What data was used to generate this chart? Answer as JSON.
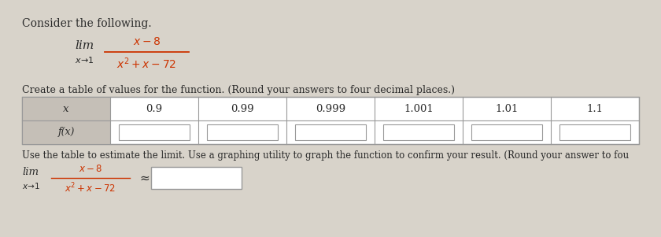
{
  "title": "Consider the following.",
  "x_values": [
    "x",
    "0.9",
    "0.99",
    "0.999",
    "1.001",
    "1.01",
    "1.1"
  ],
  "fx_label": "f(x)",
  "bottom_text": "Use the table to estimate the limit. Use a graphing utility to graph the function to confirm your result. (Round your answer to fou",
  "table_instruction": "Create a table of values for the function. (Round your answers to four decimal places.)",
  "bg_color": "#d8d3ca",
  "white": "#ffffff",
  "table_header_bg": "#c5bfb7",
  "text_color": "#2a2a2a",
  "formula_color": "#cc3300",
  "lim_color": "#2a2a2a"
}
